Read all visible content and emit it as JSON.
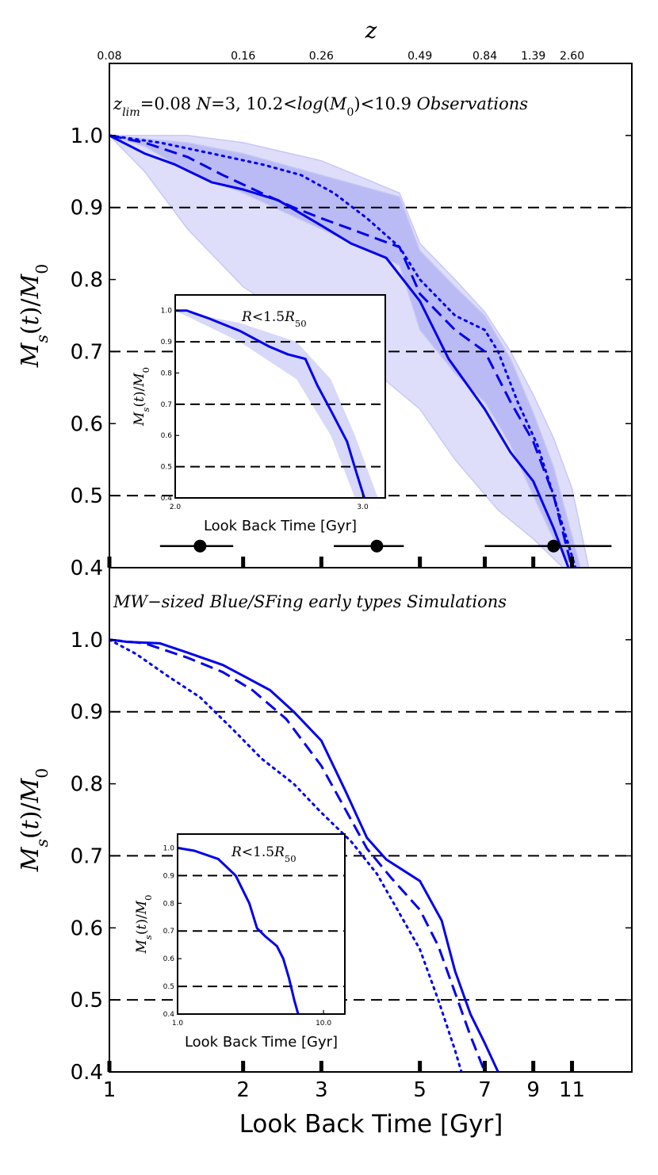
{
  "colors": {
    "line": "#0000ee",
    "band_light": "#c8c8f7",
    "band_dark": "#9c9cee",
    "axis": "#000000"
  },
  "chart_data": [
    {
      "type": "line",
      "panel": "top",
      "annotation": "z_lim=0.08 N=3, 10.2<log(M_0)<10.9 Observations",
      "ylabel": "M_s(t)/M_0",
      "xlabel": "",
      "x_scale": "log",
      "xlim": [
        1,
        15
      ],
      "ylim": [
        0.4,
        1.1
      ],
      "yticks": [
        "0.4",
        "0.5",
        "0.6",
        "0.7",
        "0.8",
        "0.9",
        "1.0"
      ],
      "hlines": [
        0.5,
        0.7,
        0.9
      ],
      "top_axis": {
        "label": "z",
        "ticks": [
          {
            "t": 1,
            "label": "0.08"
          },
          {
            "t": 2,
            "label": "0.16"
          },
          {
            "t": 3,
            "label": "0.26"
          },
          {
            "t": 5,
            "label": "0.49"
          },
          {
            "t": 7,
            "label": "0.84"
          },
          {
            "t": 9,
            "label": "1.39"
          },
          {
            "t": 11,
            "label": "2.60"
          }
        ]
      },
      "series": [
        {
          "name": "solid",
          "style": "solid",
          "x": [
            1,
            1.2,
            1.4,
            1.7,
            2.0,
            2.4,
            3.0,
            3.5,
            4.2,
            5.0,
            5.8,
            7.0,
            8.0,
            9.0,
            10.0,
            10.8
          ],
          "y": [
            1.0,
            0.975,
            0.96,
            0.935,
            0.925,
            0.91,
            0.875,
            0.85,
            0.83,
            0.77,
            0.69,
            0.62,
            0.56,
            0.52,
            0.455,
            0.4
          ]
        },
        {
          "name": "dashed",
          "style": "dashed",
          "x": [
            1,
            1.2,
            1.5,
            1.8,
            2.2,
            2.6,
            3.0,
            3.5,
            4.5,
            5.0,
            6.0,
            7.0,
            8.0,
            9.0,
            10.0,
            11.0
          ],
          "y": [
            1.0,
            0.99,
            0.97,
            0.945,
            0.92,
            0.9,
            0.885,
            0.87,
            0.845,
            0.78,
            0.73,
            0.7,
            0.63,
            0.575,
            0.5,
            0.4
          ]
        },
        {
          "name": "dotted",
          "style": "dotted",
          "x": [
            1,
            1.3,
            1.7,
            2.2,
            2.7,
            3.2,
            3.8,
            4.5,
            5.0,
            6.0,
            7.0,
            7.5,
            8.3,
            9.2,
            10.0,
            11.2
          ],
          "y": [
            1.0,
            0.99,
            0.975,
            0.96,
            0.945,
            0.92,
            0.885,
            0.845,
            0.8,
            0.75,
            0.73,
            0.7,
            0.63,
            0.57,
            0.5,
            0.4
          ]
        }
      ],
      "bands": [
        {
          "name": "band-light",
          "upper_x": [
            1,
            1.5,
            2.0,
            3.0,
            4.5,
            5.0,
            6.0,
            7.0,
            8.0,
            9.0,
            10.0,
            11.0,
            12.0
          ],
          "upper_y": [
            1.0,
            1.0,
            0.99,
            0.965,
            0.92,
            0.85,
            0.8,
            0.755,
            0.7,
            0.64,
            0.58,
            0.51,
            0.4
          ],
          "lower_x": [
            10.5,
            9.0,
            7.5,
            6.0,
            5.0,
            4.0,
            3.0,
            2.0,
            1.5,
            1.2,
            1
          ],
          "lower_y": [
            0.4,
            0.44,
            0.48,
            0.55,
            0.62,
            0.67,
            0.72,
            0.79,
            0.87,
            0.95,
            1.0
          ]
        },
        {
          "name": "band-dark",
          "upper_x": [
            1,
            1.5,
            2.0,
            3.0,
            4.5,
            5.0,
            6.0,
            7.0,
            8.0,
            9.0,
            10.0,
            11.5
          ],
          "upper_y": [
            1.0,
            0.99,
            0.975,
            0.945,
            0.915,
            0.84,
            0.79,
            0.75,
            0.69,
            0.615,
            0.54,
            0.4
          ],
          "lower_x": [
            11.0,
            10.0,
            9.0,
            8.0,
            7.0,
            6.0,
            5.0,
            4.5,
            3.0,
            2.0,
            1.5,
            1.2,
            1
          ],
          "lower_y": [
            0.4,
            0.44,
            0.5,
            0.57,
            0.63,
            0.67,
            0.73,
            0.82,
            0.87,
            0.92,
            0.95,
            0.985,
            1.0
          ]
        }
      ],
      "error_bars": [
        {
          "x": 1.6,
          "y": 0.43,
          "xerr": [
            1.3,
            1.9
          ]
        },
        {
          "x": 4.0,
          "y": 0.43,
          "xerr": [
            3.2,
            4.6
          ]
        },
        {
          "x": 10.0,
          "y": 0.43,
          "xerr": [
            7.0,
            13.5
          ]
        }
      ],
      "inset": {
        "annotation": "R<1.5R_50",
        "xlabel": "Look Back Time [Gyr]",
        "ylabel": "M_s(t)/M_0",
        "x_scale": "log",
        "xlim": [
          2.0,
          3.15
        ],
        "ylim": [
          0.4,
          1.05
        ],
        "xticks": [
          "2.0",
          "3.0"
        ],
        "yticks": [
          "0.4",
          "0.5",
          "0.6",
          "0.7",
          "0.8",
          "0.9",
          "1.0"
        ],
        "hlines": [
          0.5,
          0.7,
          0.9
        ],
        "series": [
          {
            "name": "solid",
            "x": [
              2.0,
              2.05,
              2.15,
              2.3,
              2.45,
              2.55,
              2.65,
              2.72,
              2.8,
              2.9,
              2.96,
              3.01
            ],
            "y": [
              1.0,
              1.0,
              0.975,
              0.935,
              0.885,
              0.86,
              0.845,
              0.76,
              0.68,
              0.58,
              0.48,
              0.4
            ]
          }
        ],
        "band": {
          "upper_x": [
            2.0,
            2.3,
            2.6,
            2.8,
            2.95,
            3.1
          ],
          "upper_y": [
            1.0,
            0.96,
            0.9,
            0.78,
            0.6,
            0.4
          ],
          "lower_x": [
            2.95,
            2.8,
            2.6,
            2.3,
            2.0
          ],
          "lower_y": [
            0.4,
            0.6,
            0.78,
            0.9,
            1.0
          ]
        }
      }
    },
    {
      "type": "line",
      "panel": "bottom",
      "annotation": "MW-sized Blue/SFing early types  Simulations",
      "ylabel": "M_s(t)/M_0",
      "xlabel": "Look Back Time [Gyr]",
      "x_scale": "log",
      "xlim": [
        1,
        15
      ],
      "ylim": [
        0.4,
        1.1
      ],
      "xticks": [
        "1",
        "2",
        "3",
        "5",
        "7",
        "9",
        "11"
      ],
      "yticks": [
        "0.4",
        "0.5",
        "0.6",
        "0.7",
        "0.8",
        "0.9",
        "1.0"
      ],
      "hlines": [
        0.5,
        0.7,
        0.9
      ],
      "series": [
        {
          "name": "solid",
          "style": "solid",
          "x": [
            1,
            1.1,
            1.3,
            1.5,
            1.8,
            2.0,
            2.3,
            2.6,
            3.0,
            3.4,
            3.8,
            4.2,
            5.0,
            5.6,
            6.0,
            6.5,
            7.0,
            7.5
          ],
          "y": [
            1.0,
            0.997,
            0.995,
            0.982,
            0.965,
            0.95,
            0.93,
            0.9,
            0.86,
            0.79,
            0.725,
            0.695,
            0.665,
            0.61,
            0.54,
            0.48,
            0.44,
            0.4
          ]
        },
        {
          "name": "dashed",
          "style": "dashed",
          "x": [
            1,
            1.2,
            1.5,
            1.8,
            2.1,
            2.5,
            3.0,
            3.5,
            3.8,
            4.3,
            5.0,
            5.5,
            6.0,
            6.5,
            7.0
          ],
          "y": [
            1.0,
            0.995,
            0.975,
            0.955,
            0.93,
            0.89,
            0.825,
            0.75,
            0.71,
            0.67,
            0.625,
            0.575,
            0.51,
            0.45,
            0.4
          ]
        },
        {
          "name": "dotted",
          "style": "dotted",
          "x": [
            1,
            1.15,
            1.35,
            1.6,
            1.9,
            2.2,
            2.6,
            3.0,
            3.5,
            4.0,
            4.5,
            5.0,
            5.5,
            6.0,
            6.2
          ],
          "y": [
            1.0,
            0.98,
            0.95,
            0.92,
            0.875,
            0.835,
            0.8,
            0.76,
            0.72,
            0.675,
            0.62,
            0.57,
            0.5,
            0.43,
            0.4
          ]
        }
      ],
      "inset": {
        "annotation": "R<1.5R_50",
        "xlabel": "Look Back Time [Gyr]",
        "ylabel": "M_s(t)/M_0",
        "x_scale": "log",
        "xlim": [
          1.0,
          14
        ],
        "ylim": [
          0.4,
          1.05
        ],
        "xticks": [
          "1.0",
          "10.0"
        ],
        "yticks": [
          "0.4",
          "0.5",
          "0.6",
          "0.7",
          "0.8",
          "0.9",
          "1.0"
        ],
        "hlines": [
          0.5,
          0.7,
          0.9
        ],
        "series": [
          {
            "name": "solid",
            "x": [
              1.0,
              1.3,
              1.9,
              2.5,
              3.1,
              3.5,
              4.0,
              4.8,
              5.3,
              5.8,
              6.3,
              6.7
            ],
            "y": [
              1.0,
              0.99,
              0.96,
              0.9,
              0.8,
              0.71,
              0.68,
              0.645,
              0.6,
              0.53,
              0.45,
              0.4
            ]
          }
        ]
      }
    }
  ],
  "bottom_xlabel": "Look Back Time [Gyr]"
}
